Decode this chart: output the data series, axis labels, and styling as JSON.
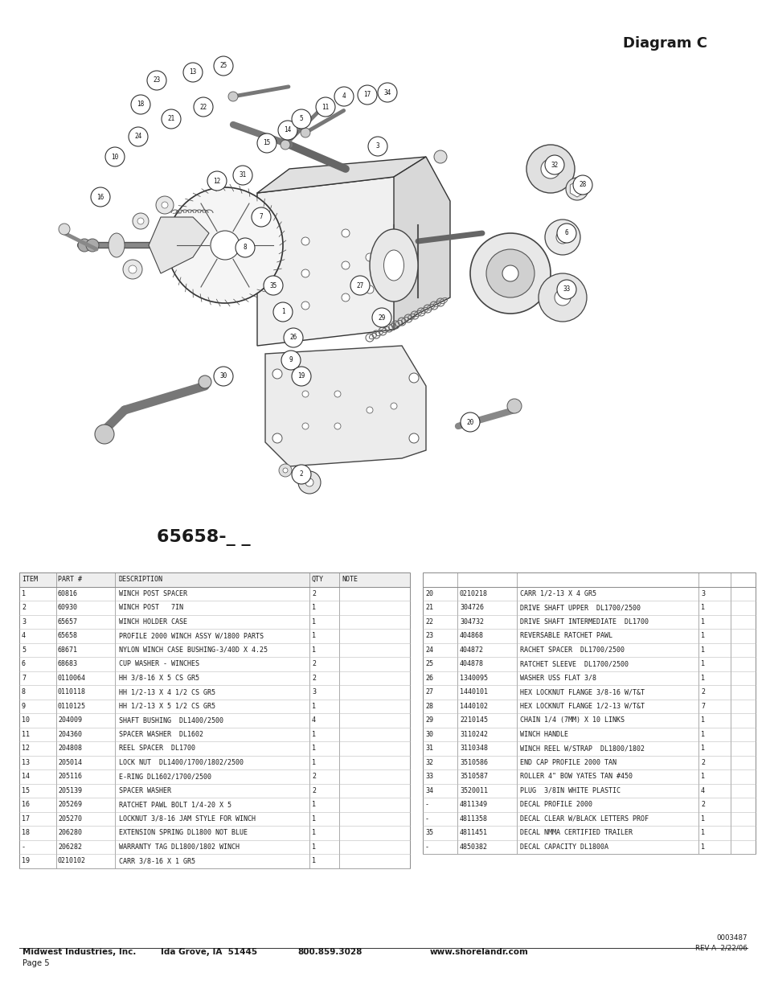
{
  "title": "Diagram C",
  "model_number": "65658-_ _",
  "table_headers_left": [
    "ITEM",
    "PART #",
    "DESCRIPTION",
    "QTY",
    "NOTE"
  ],
  "table_left": [
    [
      "1",
      "60816",
      "WINCH POST SPACER",
      "2",
      ""
    ],
    [
      "2",
      "60930",
      "WINCH POST   7IN",
      "1",
      ""
    ],
    [
      "3",
      "65657",
      "WINCH HOLDER CASE",
      "1",
      ""
    ],
    [
      "4",
      "65658",
      "PROFILE 2000 WINCH ASSY W/1800 PARTS",
      "1",
      ""
    ],
    [
      "5",
      "68671",
      "NYLON WINCH CASE BUSHING-3/40D X 4.25",
      "1",
      ""
    ],
    [
      "6",
      "68683",
      "CUP WASHER - WINCHES",
      "2",
      ""
    ],
    [
      "7",
      "0110064",
      "HH 3/8-16 X 5 CS GR5",
      "2",
      ""
    ],
    [
      "8",
      "0110118",
      "HH 1/2-13 X 4 1/2 CS GR5",
      "3",
      ""
    ],
    [
      "9",
      "0110125",
      "HH 1/2-13 X 5 1/2 CS GR5",
      "1",
      ""
    ],
    [
      "10",
      "204009",
      "SHAFT BUSHING  DL1400/2500",
      "4",
      ""
    ],
    [
      "11",
      "204360",
      "SPACER WASHER  DL1602",
      "1",
      ""
    ],
    [
      "12",
      "204808",
      "REEL SPACER  DL1700",
      "1",
      ""
    ],
    [
      "13",
      "205014",
      "LOCK NUT  DL1400/1700/1802/2500",
      "1",
      ""
    ],
    [
      "14",
      "205116",
      "E-RING DL1602/1700/2500",
      "2",
      ""
    ],
    [
      "15",
      "205139",
      "SPACER WASHER",
      "2",
      ""
    ],
    [
      "16",
      "205269",
      "RATCHET PAWL BOLT 1/4-20 X 5",
      "1",
      ""
    ],
    [
      "17",
      "205270",
      "LOCKNUT 3/8-16 JAM STYLE FOR WINCH",
      "1",
      ""
    ],
    [
      "18",
      "206280",
      "EXTENSION SPRING DL1800 NOT BLUE",
      "1",
      ""
    ],
    [
      "-",
      "206282",
      "WARRANTY TAG DL1800/1802 WINCH",
      "1",
      ""
    ],
    [
      "19",
      "0210102",
      "CARR 3/8-16 X 1 GR5",
      "1",
      ""
    ]
  ],
  "table_right": [
    [
      "20",
      "0210218",
      "CARR 1/2-13 X 4 GR5",
      "3",
      ""
    ],
    [
      "21",
      "304726",
      "DRIVE SHAFT UPPER  DL1700/2500",
      "1",
      ""
    ],
    [
      "22",
      "304732",
      "DRIVE SHAFT INTERMEDIATE  DL1700",
      "1",
      ""
    ],
    [
      "23",
      "404868",
      "REVERSABLE RATCHET PAWL",
      "1",
      ""
    ],
    [
      "24",
      "404872",
      "RACHET SPACER  DL1700/2500",
      "1",
      ""
    ],
    [
      "25",
      "404878",
      "RATCHET SLEEVE  DL1700/2500",
      "1",
      ""
    ],
    [
      "26",
      "1340095",
      "WASHER USS FLAT 3/8",
      "1",
      ""
    ],
    [
      "27",
      "1440101",
      "HEX LOCKNUT FLANGE 3/8-16 W/T&T",
      "2",
      ""
    ],
    [
      "28",
      "1440102",
      "HEX LOCKNUT FLANGE 1/2-13 W/T&T",
      "7",
      ""
    ],
    [
      "29",
      "2210145",
      "CHAIN 1/4 (7MM) X 10 LINKS",
      "1",
      ""
    ],
    [
      "30",
      "3110242",
      "WINCH HANDLE",
      "1",
      ""
    ],
    [
      "31",
      "3110348",
      "WINCH REEL W/STRAP  DL1800/1802",
      "1",
      ""
    ],
    [
      "32",
      "3510586",
      "END CAP PROFILE 2000 TAN",
      "2",
      ""
    ],
    [
      "33",
      "3510587",
      "ROLLER 4\" BOW YATES TAN #450",
      "1",
      ""
    ],
    [
      "34",
      "3520011",
      "PLUG  3/8IN WHITE PLASTIC",
      "4",
      ""
    ],
    [
      "-",
      "4811349",
      "DECAL PROFILE 2000",
      "2",
      ""
    ],
    [
      "-",
      "4811358",
      "DECAL CLEAR W/BLACK LETTERS PROF",
      "1",
      ""
    ],
    [
      "35",
      "4811451",
      "DECAL NMMA CERTIFIED TRAILER",
      "1",
      ""
    ],
    [
      "-",
      "4850382",
      "DECAL CAPACITY DL1800A",
      "1",
      ""
    ]
  ],
  "footer_left": "Midwest Industries, Inc.",
  "footer_city": "Ida Grove, IA  51445",
  "footer_phone": "800.859.3028",
  "footer_web": "www.shorelandr.com",
  "footer_doc": "0003487",
  "footer_rev": "REV A  2/22/06",
  "footer_page": "Page 5",
  "bg_color": "#ffffff",
  "text_color": "#1a1a1a",
  "table_border_color": "#888888",
  "table_line_color": "#bbbbbb"
}
